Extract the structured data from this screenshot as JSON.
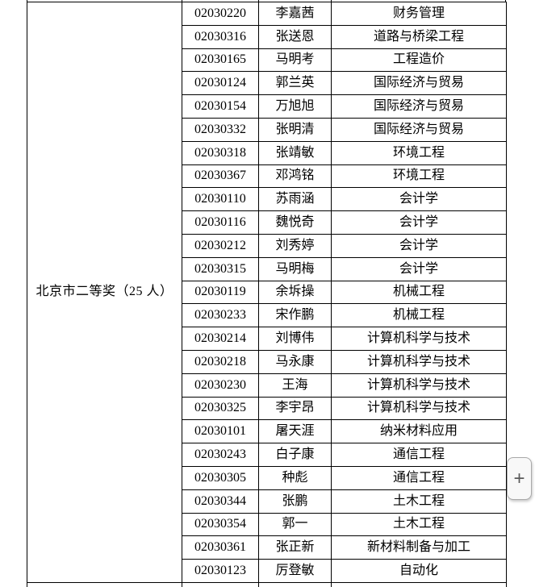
{
  "document": {
    "award": {
      "label": "北京市二等奖（25 人）"
    },
    "table": {
      "columns": [
        "award_group",
        "student_id",
        "name",
        "major"
      ],
      "rows": [
        {
          "id": "02030220",
          "name": "李嘉茜",
          "major": "财务管理"
        },
        {
          "id": "02030316",
          "name": "张送恩",
          "major": "道路与桥梁工程"
        },
        {
          "id": "02030165",
          "name": "马明考",
          "major": "工程造价"
        },
        {
          "id": "02030124",
          "name": "郭兰英",
          "major": "国际经济与贸易"
        },
        {
          "id": "02030154",
          "name": "万旭旭",
          "major": "国际经济与贸易"
        },
        {
          "id": "02030332",
          "name": "张明清",
          "major": "国际经济与贸易"
        },
        {
          "id": "02030318",
          "name": "张靖敏",
          "major": "环境工程"
        },
        {
          "id": "02030367",
          "name": "邓鸿铭",
          "major": "环境工程"
        },
        {
          "id": "02030110",
          "name": "苏雨涵",
          "major": "会计学"
        },
        {
          "id": "02030116",
          "name": "魏悦奇",
          "major": "会计学"
        },
        {
          "id": "02030212",
          "name": "刘秀婷",
          "major": "会计学"
        },
        {
          "id": "02030315",
          "name": "马明梅",
          "major": "会计学"
        },
        {
          "id": "02030119",
          "name": "余坼操",
          "major": "机械工程"
        },
        {
          "id": "02030233",
          "name": "宋作鹏",
          "major": "机械工程"
        },
        {
          "id": "02030214",
          "name": "刘博伟",
          "major": "计算机科学与技术"
        },
        {
          "id": "02030218",
          "name": "马永康",
          "major": "计算机科学与技术"
        },
        {
          "id": "02030230",
          "name": "王海",
          "major": "计算机科学与技术"
        },
        {
          "id": "02030325",
          "name": "李宇昂",
          "major": "计算机科学与技术"
        },
        {
          "id": "02030101",
          "name": "屠天涯",
          "major": "纳米材料应用"
        },
        {
          "id": "02030243",
          "name": "白子康",
          "major": "通信工程"
        },
        {
          "id": "02030305",
          "name": "种彪",
          "major": "通信工程"
        },
        {
          "id": "02030344",
          "name": "张鹏",
          "major": "土木工程"
        },
        {
          "id": "02030354",
          "name": "郭一",
          "major": "土木工程"
        },
        {
          "id": "02030361",
          "name": "张正新",
          "major": "新材料制备与加工"
        },
        {
          "id": "02030123",
          "name": "厉登敏",
          "major": "自动化"
        }
      ]
    }
  },
  "controls": {
    "plus_label": "+"
  },
  "colors": {
    "border": "#000000",
    "text": "#000000",
    "page_bg": "#ffffff",
    "button_bg": "#f8f8f8",
    "button_border": "#a9a9a9",
    "plus_color": "#5a5a5a"
  }
}
